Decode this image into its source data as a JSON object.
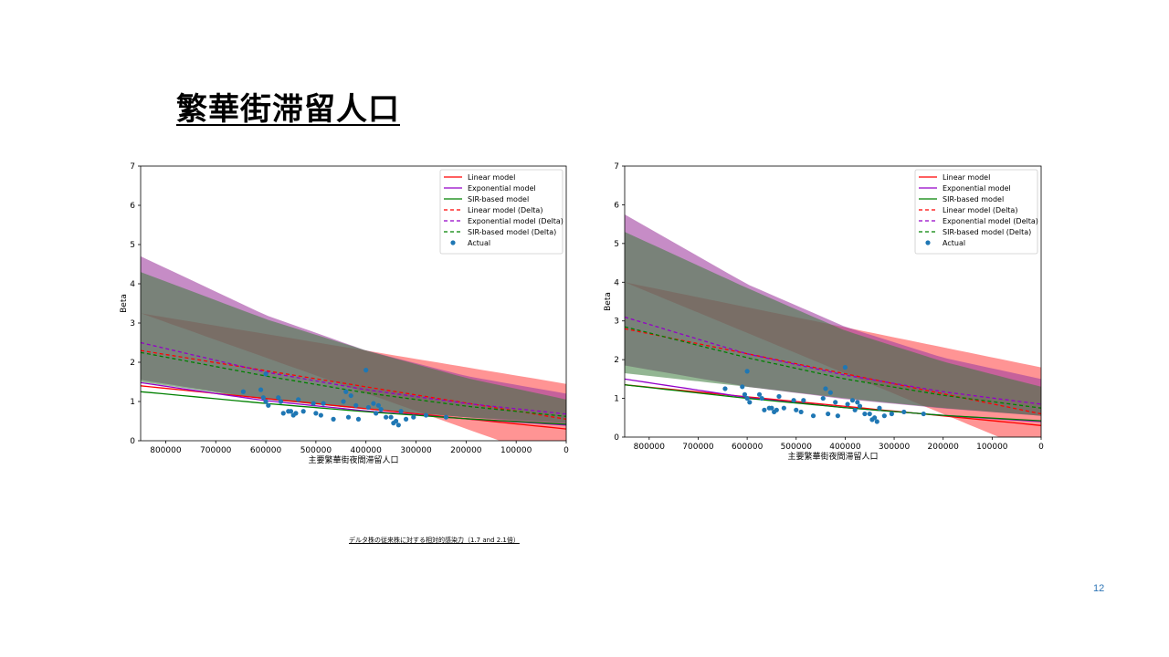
{
  "slide": {
    "title": "繁華街滞留人口",
    "footnote": "デルタ株の従来株に対する相対的感染力（1.7 and 2.1倍）",
    "page_number": "12"
  },
  "colors": {
    "linear": "#ff0000",
    "exponential": "#9400c8",
    "sir": "#008000",
    "actual": "#1f77b4",
    "linear_fill": "#ff6666",
    "exponential_fill": "#a040a0",
    "sir_fill": "#3a7a3a"
  },
  "chart_data": [
    {
      "type": "line",
      "xlabel": "主要繁華街夜間滞留人口",
      "ylabel": "Beta",
      "xlim": [
        850000,
        0
      ],
      "ylim": [
        0,
        7
      ],
      "x_ticks": [
        800000,
        700000,
        600000,
        500000,
        400000,
        300000,
        200000,
        100000,
        0
      ],
      "y_ticks": [
        0,
        1,
        2,
        3,
        4,
        5,
        6,
        7
      ],
      "grid": false,
      "legend_position": "top-right",
      "legend": [
        "Linear model",
        "Exponential model",
        "SIR-based model",
        "Linear model (Delta)",
        "Exponential model (Delta)",
        "SIR-based model (Delta)",
        "Actual"
      ],
      "bands": [
        {
          "name": "Linear model (Delta)",
          "x": [
            850000,
            0
          ],
          "lower": [
            3.25,
            -0.6
          ],
          "upper": [
            3.25,
            1.45
          ]
        },
        {
          "name": "Exponential model (Delta)",
          "x": [
            850000,
            600000,
            400000,
            200000,
            0
          ],
          "lower": [
            1.55,
            1.05,
            0.8,
            0.6,
            0.4
          ],
          "upper": [
            4.7,
            3.2,
            2.3,
            1.65,
            1.2
          ]
        },
        {
          "name": "SIR-based model (Delta)",
          "x": [
            850000,
            600000,
            400000,
            200000,
            0
          ],
          "lower": [
            1.5,
            1.05,
            0.8,
            0.6,
            0.45
          ],
          "upper": [
            4.3,
            3.1,
            2.3,
            1.6,
            1.05
          ]
        }
      ],
      "series": [
        {
          "name": "Linear model",
          "style": "solid",
          "x": [
            850000,
            0
          ],
          "y": [
            1.4,
            0.3
          ]
        },
        {
          "name": "Exponential model",
          "style": "solid",
          "x": [
            850000,
            600000,
            400000,
            200000,
            0
          ],
          "y": [
            1.48,
            1.02,
            0.76,
            0.56,
            0.4
          ]
        },
        {
          "name": "SIR-based model",
          "style": "solid",
          "x": [
            850000,
            600000,
            400000,
            200000,
            0
          ],
          "y": [
            1.25,
            0.95,
            0.74,
            0.56,
            0.42
          ]
        },
        {
          "name": "Linear model (Delta)",
          "style": "dashed",
          "x": [
            850000,
            0
          ],
          "y": [
            2.3,
            0.55
          ]
        },
        {
          "name": "Exponential model (Delta)",
          "style": "dashed",
          "x": [
            850000,
            600000,
            400000,
            200000,
            0
          ],
          "y": [
            2.5,
            1.75,
            1.3,
            0.95,
            0.68
          ]
        },
        {
          "name": "SIR-based model (Delta)",
          "style": "dashed",
          "x": [
            850000,
            600000,
            400000,
            200000,
            0
          ],
          "y": [
            2.25,
            1.65,
            1.22,
            0.88,
            0.62
          ]
        }
      ],
      "actual_points": [
        [
          645000,
          1.25
        ],
        [
          610000,
          1.3
        ],
        [
          605000,
          1.1
        ],
        [
          600000,
          1.7
        ],
        [
          600000,
          1.0
        ],
        [
          595000,
          0.9
        ],
        [
          575000,
          1.1
        ],
        [
          570000,
          1.0
        ],
        [
          565000,
          0.7
        ],
        [
          555000,
          0.75
        ],
        [
          550000,
          0.75
        ],
        [
          545000,
          0.65
        ],
        [
          540000,
          0.7
        ],
        [
          535000,
          1.05
        ],
        [
          525000,
          0.75
        ],
        [
          505000,
          0.95
        ],
        [
          500000,
          0.7
        ],
        [
          490000,
          0.65
        ],
        [
          485000,
          0.95
        ],
        [
          465000,
          0.55
        ],
        [
          445000,
          1.0
        ],
        [
          440000,
          1.25
        ],
        [
          435000,
          0.6
        ],
        [
          430000,
          1.15
        ],
        [
          420000,
          0.9
        ],
        [
          415000,
          0.55
        ],
        [
          400000,
          1.8
        ],
        [
          395000,
          0.85
        ],
        [
          385000,
          0.95
        ],
        [
          380000,
          0.7
        ],
        [
          375000,
          0.9
        ],
        [
          370000,
          0.8
        ],
        [
          360000,
          0.6
        ],
        [
          350000,
          0.6
        ],
        [
          345000,
          0.45
        ],
        [
          340000,
          0.5
        ],
        [
          335000,
          0.4
        ],
        [
          330000,
          0.75
        ],
        [
          320000,
          0.55
        ],
        [
          305000,
          0.6
        ],
        [
          280000,
          0.65
        ],
        [
          240000,
          0.6
        ]
      ]
    },
    {
      "type": "line",
      "xlabel": "主要繁華街夜間滞留人口",
      "ylabel": "Beta",
      "xlim": [
        850000,
        0
      ],
      "ylim": [
        0,
        7
      ],
      "x_ticks": [
        800000,
        700000,
        600000,
        500000,
        400000,
        300000,
        200000,
        100000,
        0
      ],
      "y_ticks": [
        0,
        1,
        2,
        3,
        4,
        5,
        6,
        7
      ],
      "grid": false,
      "legend_position": "top-right",
      "legend": [
        "Linear model",
        "Exponential model",
        "SIR-based model",
        "Linear model (Delta)",
        "Exponential model (Delta)",
        "SIR-based model (Delta)",
        "Actual"
      ],
      "bands": [
        {
          "name": "Linear model (Delta)",
          "x": [
            850000,
            0
          ],
          "lower": [
            4.0,
            -0.45
          ],
          "upper": [
            4.0,
            1.8
          ]
        },
        {
          "name": "Exponential model (Delta)",
          "x": [
            850000,
            600000,
            400000,
            200000,
            0
          ],
          "lower": [
            1.85,
            1.3,
            0.98,
            0.74,
            0.55
          ],
          "upper": [
            5.75,
            3.95,
            2.85,
            2.05,
            1.5
          ]
        },
        {
          "name": "SIR-based model (Delta)",
          "x": [
            850000,
            600000,
            400000,
            200000,
            0
          ],
          "lower": [
            1.65,
            1.3,
            1.0,
            0.75,
            0.55
          ],
          "upper": [
            5.3,
            3.85,
            2.75,
            1.95,
            1.3
          ]
        }
      ],
      "series": [
        {
          "name": "Linear model",
          "style": "solid",
          "x": [
            850000,
            0
          ],
          "y": [
            1.35,
            0.3
          ]
        },
        {
          "name": "Exponential model",
          "style": "solid",
          "x": [
            850000,
            600000,
            400000,
            200000,
            0
          ],
          "y": [
            1.5,
            1.02,
            0.76,
            0.56,
            0.4
          ]
        },
        {
          "name": "SIR-based model",
          "style": "solid",
          "x": [
            850000,
            600000,
            400000,
            200000,
            0
          ],
          "y": [
            1.35,
            1.0,
            0.76,
            0.56,
            0.42
          ]
        },
        {
          "name": "Linear model (Delta)",
          "style": "dashed",
          "x": [
            850000,
            0
          ],
          "y": [
            2.8,
            0.6
          ]
        },
        {
          "name": "Exponential model (Delta)",
          "style": "dashed",
          "x": [
            850000,
            600000,
            400000,
            200000,
            0
          ],
          "y": [
            3.1,
            2.15,
            1.6,
            1.17,
            0.85
          ]
        },
        {
          "name": "SIR-based model (Delta)",
          "style": "dashed",
          "x": [
            850000,
            600000,
            400000,
            200000,
            0
          ],
          "y": [
            2.85,
            2.05,
            1.5,
            1.08,
            0.75
          ]
        }
      ],
      "actual_points": [
        [
          645000,
          1.25
        ],
        [
          610000,
          1.3
        ],
        [
          605000,
          1.1
        ],
        [
          600000,
          1.7
        ],
        [
          600000,
          1.0
        ],
        [
          595000,
          0.9
        ],
        [
          575000,
          1.1
        ],
        [
          570000,
          1.0
        ],
        [
          565000,
          0.7
        ],
        [
          555000,
          0.75
        ],
        [
          550000,
          0.75
        ],
        [
          545000,
          0.65
        ],
        [
          540000,
          0.7
        ],
        [
          535000,
          1.05
        ],
        [
          525000,
          0.75
        ],
        [
          505000,
          0.95
        ],
        [
          500000,
          0.7
        ],
        [
          490000,
          0.65
        ],
        [
          485000,
          0.95
        ],
        [
          465000,
          0.55
        ],
        [
          445000,
          1.0
        ],
        [
          440000,
          1.25
        ],
        [
          435000,
          0.6
        ],
        [
          430000,
          1.15
        ],
        [
          420000,
          0.9
        ],
        [
          415000,
          0.55
        ],
        [
          400000,
          1.8
        ],
        [
          395000,
          0.85
        ],
        [
          385000,
          0.95
        ],
        [
          380000,
          0.7
        ],
        [
          375000,
          0.9
        ],
        [
          370000,
          0.8
        ],
        [
          360000,
          0.6
        ],
        [
          350000,
          0.6
        ],
        [
          345000,
          0.45
        ],
        [
          340000,
          0.5
        ],
        [
          335000,
          0.4
        ],
        [
          330000,
          0.75
        ],
        [
          320000,
          0.55
        ],
        [
          305000,
          0.6
        ],
        [
          280000,
          0.65
        ],
        [
          240000,
          0.6
        ]
      ]
    }
  ]
}
